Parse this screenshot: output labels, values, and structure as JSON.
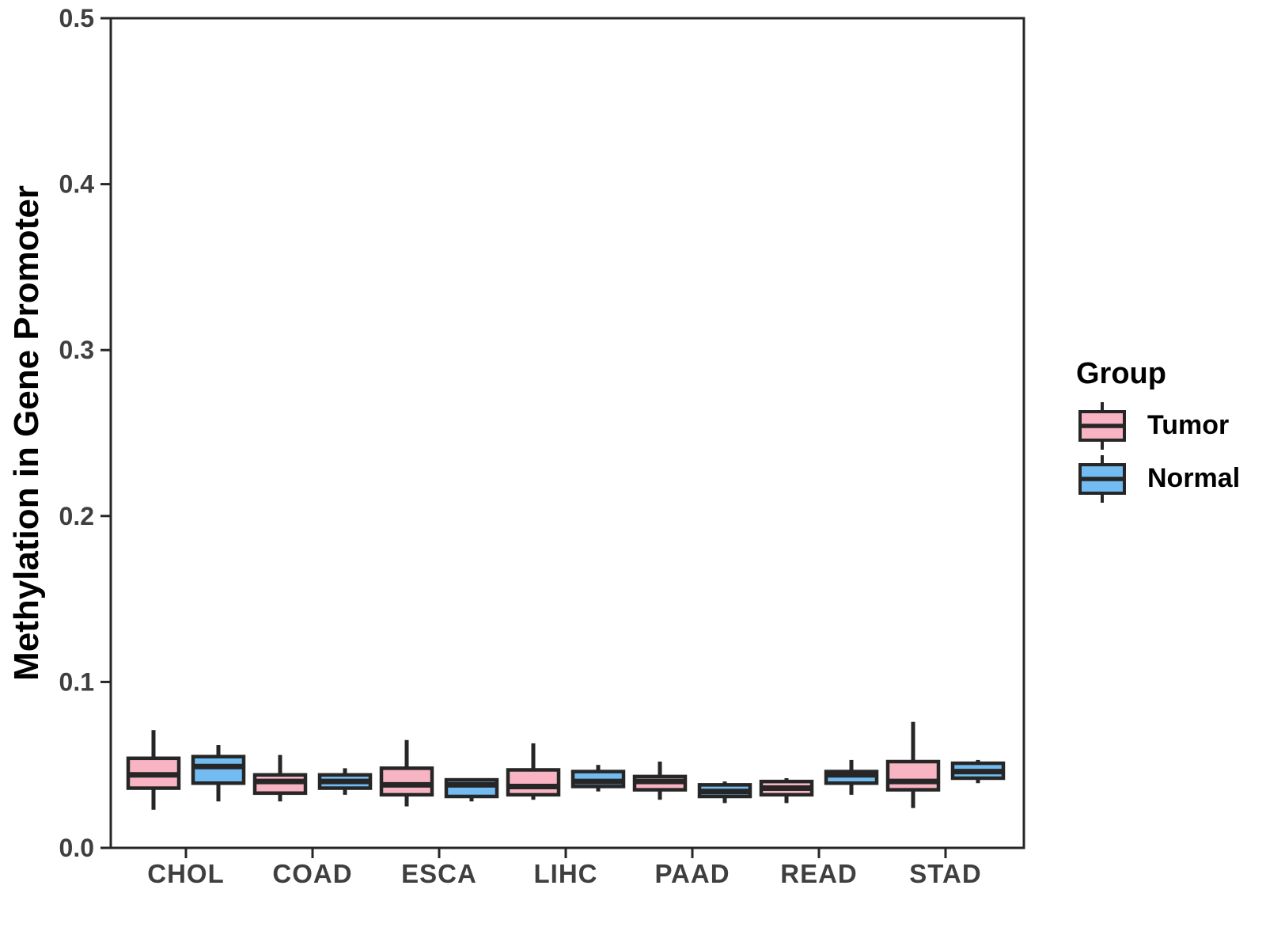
{
  "chart_data": {
    "type": "boxplot",
    "title": "",
    "xlabel": "",
    "ylabel": "Methylation in Gene Promoter",
    "ylim": [
      0.0,
      0.5
    ],
    "grid": false,
    "yticks": [
      {
        "value": 0.0,
        "label": "0.0"
      },
      {
        "value": 0.1,
        "label": "0.1"
      },
      {
        "value": 0.2,
        "label": "0.2"
      },
      {
        "value": 0.3,
        "label": "0.3"
      },
      {
        "value": 0.4,
        "label": "0.4"
      },
      {
        "value": 0.5,
        "label": "0.5"
      }
    ],
    "categories": [
      "CHOL",
      "COAD",
      "ESCA",
      "LIHC",
      "PAAD",
      "READ",
      "STAD"
    ],
    "legend": {
      "title": "Group",
      "position": "right",
      "entries": [
        {
          "label": "Tumor",
          "color": "#F9B4C3"
        },
        {
          "label": "Normal",
          "color": "#73BCF2"
        }
      ]
    },
    "series": [
      {
        "name": "Tumor",
        "fill": "#F9B4C3",
        "boxes": [
          {
            "category": "CHOL",
            "low": 0.023,
            "q1": 0.036,
            "median": 0.044,
            "q3": 0.054,
            "high": 0.071
          },
          {
            "category": "COAD",
            "low": 0.028,
            "q1": 0.033,
            "median": 0.04,
            "q3": 0.044,
            "high": 0.056
          },
          {
            "category": "ESCA",
            "low": 0.025,
            "q1": 0.032,
            "median": 0.038,
            "q3": 0.048,
            "high": 0.065
          },
          {
            "category": "LIHC",
            "low": 0.029,
            "q1": 0.032,
            "median": 0.037,
            "q3": 0.047,
            "high": 0.063
          },
          {
            "category": "PAAD",
            "low": 0.029,
            "q1": 0.035,
            "median": 0.04,
            "q3": 0.043,
            "high": 0.052
          },
          {
            "category": "READ",
            "low": 0.027,
            "q1": 0.032,
            "median": 0.036,
            "q3": 0.04,
            "high": 0.042
          },
          {
            "category": "STAD",
            "low": 0.024,
            "q1": 0.035,
            "median": 0.04,
            "q3": 0.052,
            "high": 0.076
          }
        ]
      },
      {
        "name": "Normal",
        "fill": "#73BCF2",
        "boxes": [
          {
            "category": "CHOL",
            "low": 0.028,
            "q1": 0.039,
            "median": 0.049,
            "q3": 0.055,
            "high": 0.062
          },
          {
            "category": "COAD",
            "low": 0.032,
            "q1": 0.036,
            "median": 0.04,
            "q3": 0.044,
            "high": 0.048
          },
          {
            "category": "ESCA",
            "low": 0.028,
            "q1": 0.031,
            "median": 0.038,
            "q3": 0.041,
            "high": 0.042
          },
          {
            "category": "LIHC",
            "low": 0.034,
            "q1": 0.037,
            "median": 0.04,
            "q3": 0.046,
            "high": 0.05
          },
          {
            "category": "PAAD",
            "low": 0.027,
            "q1": 0.031,
            "median": 0.034,
            "q3": 0.038,
            "high": 0.04
          },
          {
            "category": "READ",
            "low": 0.032,
            "q1": 0.039,
            "median": 0.044,
            "q3": 0.046,
            "high": 0.053
          },
          {
            "category": "STAD",
            "low": 0.039,
            "q1": 0.042,
            "median": 0.046,
            "q3": 0.051,
            "high": 0.053
          }
        ]
      }
    ],
    "colors": {
      "outline": "#262626",
      "tick_text": "#3F3F3F",
      "axis_title": "#000000",
      "background": "#FFFFFF"
    }
  }
}
